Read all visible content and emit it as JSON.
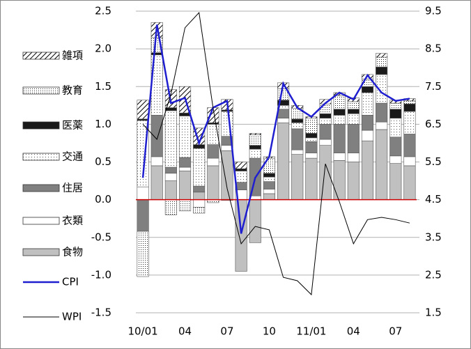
{
  "chart_data": {
    "type": "bar",
    "categories": [
      "10/01",
      null,
      null,
      "04",
      null,
      null,
      "07",
      null,
      null,
      "10",
      null,
      null,
      "11/01",
      null,
      null,
      "04",
      null,
      null,
      "07",
      null
    ],
    "series": [
      {
        "name": "食物",
        "type": "bar",
        "color": "#c0c0c0",
        "pattern": "solid",
        "values": [
          0,
          0.45,
          0.25,
          0.38,
          0.1,
          0.45,
          0.65,
          -0.95,
          -0.57,
          0.08,
          1.02,
          0.6,
          0.55,
          0.72,
          0.52,
          0.5,
          0.78,
          0.93,
          0.48,
          0.45
        ]
      },
      {
        "name": "衣類",
        "type": "bar",
        "color": "#ffffff",
        "pattern": "solid",
        "values": [
          0.17,
          0.12,
          0.1,
          0.05,
          -0.1,
          0.1,
          0.07,
          0.13,
          0.05,
          0.06,
          0.06,
          0.06,
          0.07,
          0.08,
          0.1,
          0.12,
          0.14,
          0.1,
          0.1,
          0.12
        ]
      },
      {
        "name": "住居",
        "type": "bar",
        "color": "#808080",
        "pattern": "solid",
        "values": [
          -0.42,
          0.55,
          0.08,
          0.13,
          0.08,
          0.18,
          0.12,
          0.1,
          0.5,
          0.1,
          0.12,
          0.28,
          0.15,
          0.2,
          0.38,
          0.38,
          0.2,
          0.25,
          0.25,
          0.3
        ]
      },
      {
        "name": "交通",
        "type": "bar",
        "color": "#ffffff",
        "pattern": "dots",
        "values": [
          0.88,
          0.8,
          0.75,
          0.55,
          0.5,
          0.27,
          0.33,
          0.15,
          0.12,
          0.06,
          0.05,
          0.08,
          0.05,
          0.08,
          0.12,
          0.14,
          0.3,
          0.38,
          0.25,
          0.3
        ]
      },
      {
        "name": "医薬",
        "type": "bar",
        "color": "#1a1a1a",
        "pattern": "solid",
        "values": [
          0.02,
          0.03,
          0.04,
          0.04,
          0.05,
          0.02,
          0.02,
          0.03,
          0.05,
          0.05,
          0.07,
          0.05,
          0.06,
          0.06,
          0.08,
          0.06,
          0.08,
          0.1,
          0.12,
          0.1
        ]
      },
      {
        "name": "教育",
        "type": "bar",
        "color": "#ffffff",
        "pattern": "finedots",
        "values": [
          -0.6,
          0.2,
          -0.2,
          -0.15,
          -0.08,
          -0.04,
          -0.01,
          0,
          0.14,
          0.2,
          0.15,
          0.14,
          0.2,
          0.13,
          0.18,
          0.1,
          0.1,
          0.13,
          0.08,
          0.04
        ]
      },
      {
        "name": "雑項",
        "type": "bar",
        "color": "#ffffff",
        "pattern": "hatch",
        "values": [
          0.25,
          0.2,
          0.24,
          0.35,
          0.22,
          0.2,
          0.14,
          0.09,
          0.02,
          0.02,
          0.08,
          0.04,
          0.02,
          0.06,
          0.04,
          0.05,
          0.06,
          0.05,
          0.04,
          0.03
        ]
      },
      {
        "name": "CPI",
        "type": "line",
        "color": "#1f1fd0",
        "values": [
          0.29,
          2.32,
          1.28,
          1.35,
          0.75,
          1.22,
          1.31,
          -0.45,
          0.29,
          0.57,
          1.54,
          1.22,
          1.1,
          1.28,
          1.42,
          1.33,
          1.65,
          1.42,
          1.31,
          1.34
        ]
      },
      {
        "name": "WPI",
        "type": "line",
        "axis": "y2",
        "color": "#000000",
        "values": [
          6.5,
          6.1,
          7.3,
          9.06,
          9.46,
          6.93,
          4.8,
          3.33,
          3.79,
          3.7,
          2.44,
          2.35,
          1.98,
          5.45,
          4.44,
          3.33,
          3.97,
          4.03,
          3.97,
          3.88
        ]
      }
    ],
    "ylim": [
      -1.5,
      2.5
    ],
    "yticks": [
      {
        "value": -1.5,
        "label": "-1.5"
      },
      {
        "value": -1,
        "label": "-1.0"
      },
      {
        "value": -0.5,
        "label": "-0.5"
      },
      {
        "value": 0,
        "label": "0.0"
      },
      {
        "value": 0.5,
        "label": "0.5"
      },
      {
        "value": 1,
        "label": "1.0"
      },
      {
        "value": 1.5,
        "label": "1.5"
      },
      {
        "value": 2,
        "label": "2.0"
      },
      {
        "value": 2.5,
        "label": "2.5"
      }
    ],
    "y2lim": [
      1.5,
      9.5
    ],
    "y2ticks": [
      1.5,
      2.5,
      3.5,
      4.5,
      5.5,
      6.5,
      7.5,
      8.5,
      9.5
    ],
    "grid": true,
    "zero_line_color": "#cc0000",
    "legend": "left"
  }
}
